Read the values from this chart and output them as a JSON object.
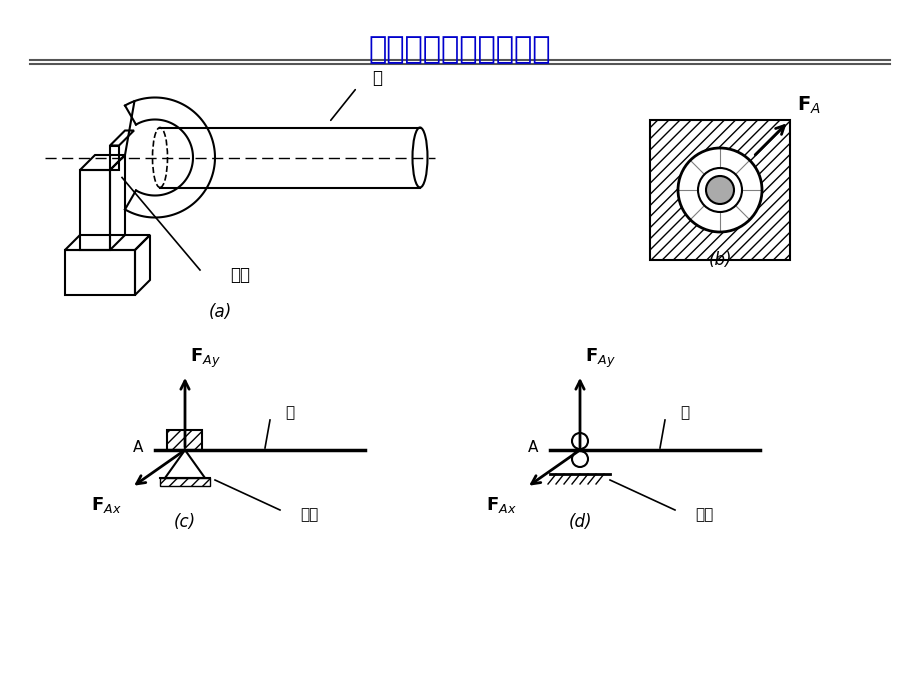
{
  "title": "径向轴承（向心轴承）",
  "title_color": "#0000CC",
  "bg_color": "#FFFFFF",
  "line_color": "#000000",
  "label_a": "(a)",
  "label_b": "(b)",
  "label_c": "(c)",
  "label_d": "(d)"
}
